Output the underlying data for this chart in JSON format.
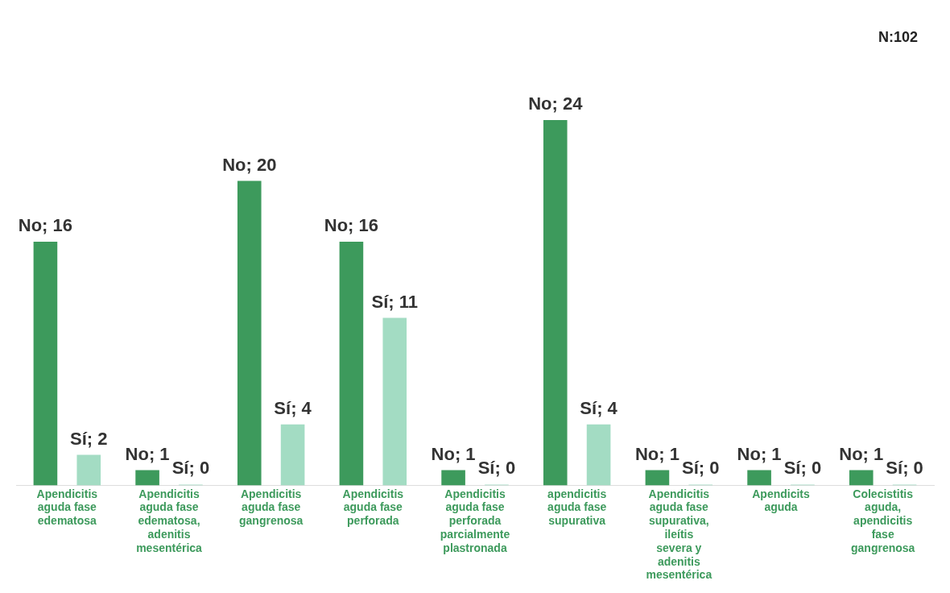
{
  "chart_data": {
    "type": "bar",
    "categories": [
      "Apendicitis aguda fase edematosa",
      "Apendicitis aguda fase edematosa, adenitis mesentérica",
      "Apendicitis aguda fase gangrenosa",
      "Apendicitis aguda fase perforada",
      "Apendicitis aguda fase perforada parcialmente plastronada",
      "apendicitis aguda fase supurativa",
      "Apendicitis aguda fase supurativa, ileítis severa y adenitis mesentérica",
      "Apendicits aguda",
      "Colecistitis aguda, apendicitis fase gangrenosa"
    ],
    "series": [
      {
        "color": "#3d9a5c",
        "values": [
          16,
          1,
          20,
          16,
          1,
          24,
          1,
          1,
          1
        ],
        "value_labels": [
          "No; 16",
          "No; 1",
          "No; 20",
          "No; 16",
          "No; 1",
          "No; 24",
          "No; 1",
          "No; 1",
          "No; 1"
        ]
      },
      {
        "color": "#a3dcc3",
        "values": [
          2,
          0,
          4,
          11,
          0,
          4,
          0,
          0,
          0
        ],
        "value_labels": [
          "Sí; 2",
          "Sí; 0",
          "Sí; 4",
          "Sí; 11",
          "Sí; 0",
          "Sí; 4",
          "Sí; 0",
          "Sí; 0",
          "Sí; 0"
        ]
      }
    ],
    "annotations": [
      "N:102"
    ],
    "tick_labels": "x",
    "grid": false,
    "legend": false
  }
}
